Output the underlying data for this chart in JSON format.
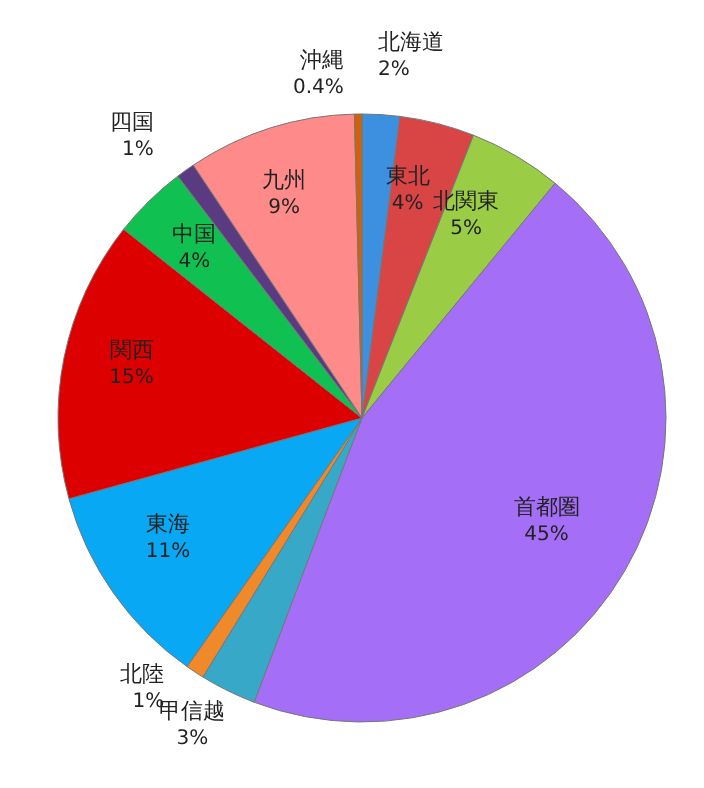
{
  "chart_data": {
    "type": "pie",
    "categories": [
      "北海道",
      "東北",
      "北関東",
      "首都圏",
      "甲信越",
      "北陸",
      "東海",
      "関西",
      "中国",
      "四国",
      "九州",
      "沖縄"
    ],
    "values": [
      2,
      4,
      5,
      45,
      3,
      1,
      11,
      15,
      4,
      1,
      9,
      0.4
    ],
    "value_labels": [
      "2%",
      "4%",
      "5%",
      "45%",
      "3%",
      "1%",
      "11%",
      "15%",
      "4%",
      "1%",
      "9%",
      "0.4%"
    ],
    "colors": [
      "#3d8fe0",
      "#d94545",
      "#9acd45",
      "#a56ef7",
      "#38a8c8",
      "#f0892a",
      "#08a8f5",
      "#dd0000",
      "#10c050",
      "#5a3a80",
      "#ff8a8a",
      "#d0600a"
    ]
  }
}
